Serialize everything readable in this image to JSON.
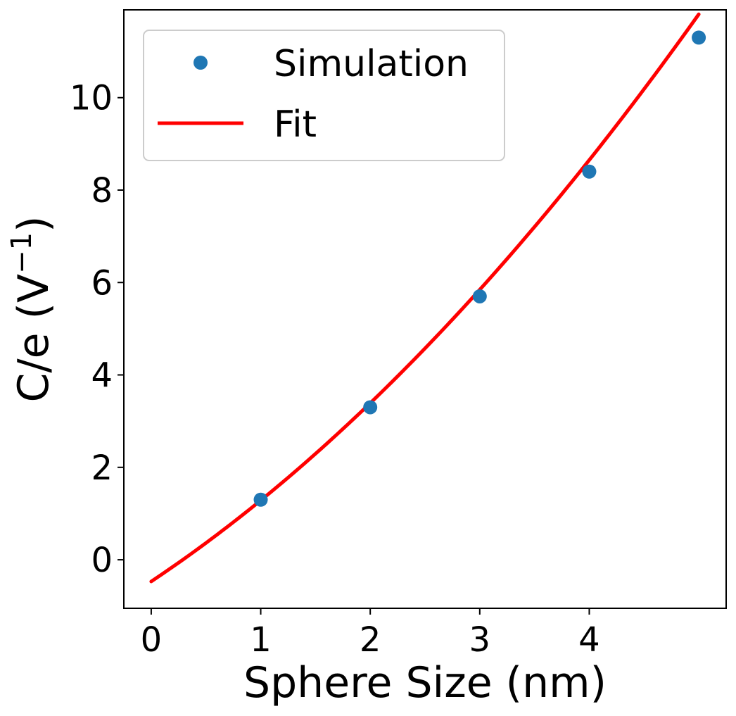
{
  "chart_data": {
    "type": "scatter+line",
    "title": "",
    "xlabel": "Sphere Size (nm)",
    "ylabel_main": "C/e (V",
    "ylabel_sup": "−1",
    "ylabel_close": ")",
    "xlim": [
      -0.25,
      5.25
    ],
    "ylim": [
      -1.05,
      11.9
    ],
    "xticks": [
      0,
      1,
      2,
      3,
      4
    ],
    "xtick_labels": [
      "0",
      "1",
      "2",
      "3",
      "4"
    ],
    "yticks": [
      0,
      2,
      4,
      6,
      8,
      10
    ],
    "ytick_labels": [
      "0",
      "2",
      "4",
      "6",
      "8",
      "10"
    ],
    "grid": false,
    "legend_position": "top-left",
    "series": [
      {
        "name": "Simulation",
        "kind": "scatter",
        "color": "#1f77b4",
        "x": [
          1,
          2,
          3,
          4,
          5
        ],
        "y": [
          1.3,
          3.3,
          5.7,
          8.4,
          11.3
        ]
      },
      {
        "name": "Fit",
        "kind": "line",
        "color": "#ff0000",
        "fit_coefficients": {
          "a": 0.175,
          "b": 1.58,
          "c": -0.47
        },
        "x_range": [
          0,
          5
        ]
      }
    ]
  }
}
